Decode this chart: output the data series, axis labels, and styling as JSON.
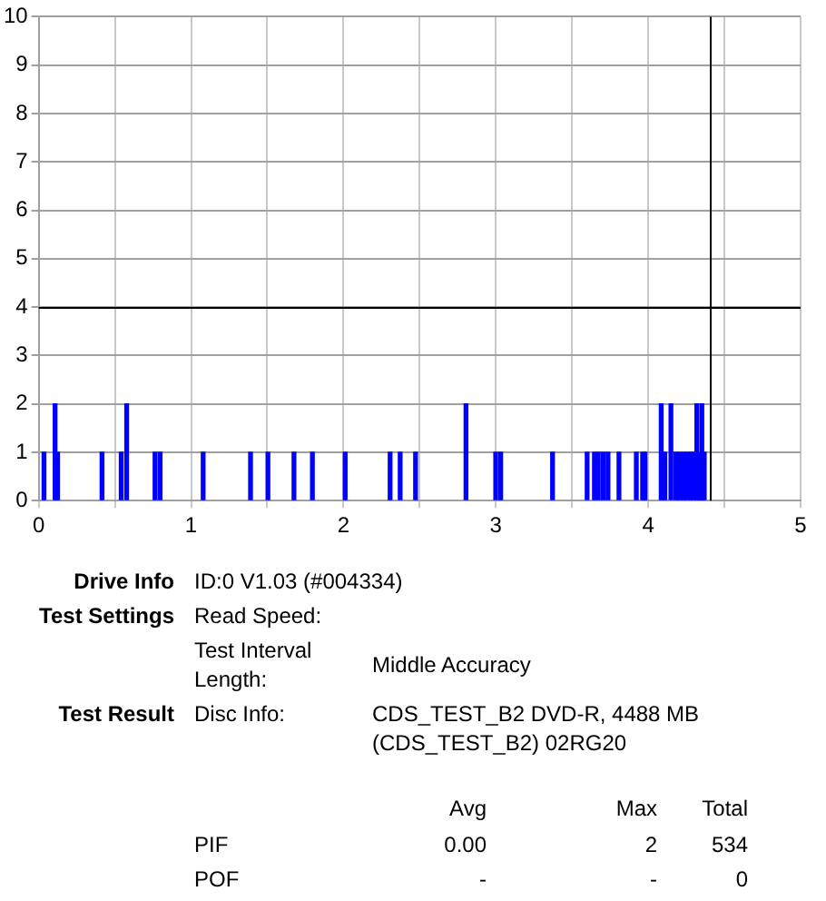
{
  "chart_data": {
    "type": "bar",
    "x": [
      0.034,
      0.107,
      0.124,
      0.415,
      0.541,
      0.577,
      0.763,
      0.796,
      1.079,
      1.39,
      1.504,
      1.675,
      1.796,
      2.011,
      2.306,
      2.372,
      2.473,
      2.804,
      2.999,
      3.032,
      3.372,
      3.599,
      3.647,
      3.672,
      3.704,
      3.736,
      3.808,
      3.922,
      3.963,
      3.979,
      4.085,
      4.109,
      4.149,
      4.182,
      4.206,
      4.231,
      4.255,
      4.279,
      4.295,
      4.319,
      4.335,
      4.352,
      4.368
    ],
    "values": [
      1,
      2,
      1,
      1,
      1,
      2,
      1,
      1,
      1,
      1,
      1,
      1,
      1,
      1,
      1,
      1,
      1,
      2,
      1,
      1,
      1,
      1,
      1,
      1,
      1,
      1,
      1,
      1,
      1,
      1,
      2,
      1,
      2,
      1,
      1,
      1,
      1,
      1,
      1,
      2,
      1,
      2,
      1
    ],
    "color": "#0000ff",
    "xlim": [
      0,
      5
    ],
    "xticks": [
      0,
      {
        "value": 0.5,
        "label": null
      },
      1,
      {
        "value": 1.5,
        "label": null
      },
      2,
      {
        "value": 2.5,
        "label": null
      },
      3,
      {
        "value": 3.5,
        "label": null
      },
      4,
      {
        "value": 4.5,
        "label": null
      },
      5
    ],
    "ylim": [
      0,
      10
    ],
    "yticks": [
      0,
      1,
      2,
      3,
      4,
      5,
      6,
      7,
      8,
      9,
      10
    ],
    "grid": true,
    "legend": false,
    "ref_lines": [
      {
        "axis": "y",
        "value": 4,
        "color": "#000000"
      },
      {
        "axis": "x",
        "value": 4.41,
        "color": "#000000"
      }
    ],
    "annotations": [
      "Drive Info",
      "ID:0 V1.03 (#004334)",
      "Test Settings",
      "Read Speed:",
      "Test Interval Length:",
      "Middle Accuracy",
      "Test Result",
      "Disc Info:",
      "CDS_TEST_B2 DVD-R, 4488 MB (CDS_TEST_B2) 02RG20",
      "Avg",
      "Max",
      "Total",
      "PIF",
      "0.00",
      "2",
      "534",
      "POF",
      "-",
      "-",
      "0"
    ]
  }
}
